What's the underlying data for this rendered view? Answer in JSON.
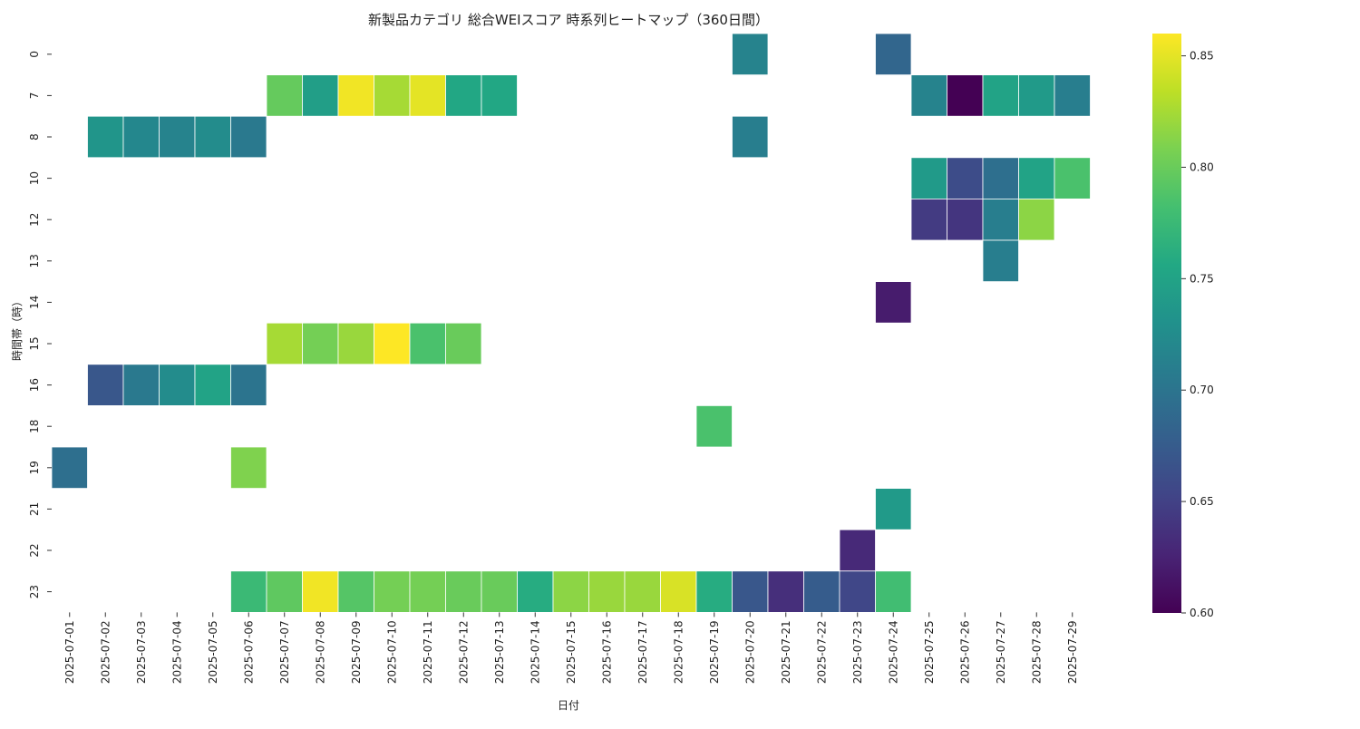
{
  "chart_data": {
    "type": "heatmap",
    "title": "新製品カテゴリ 総合WEIスコア 時系列ヒートマップ（360日間）",
    "xlabel": "日付",
    "ylabel": "時間帯（時）",
    "x_categories": [
      "2025-07-01",
      "2025-07-02",
      "2025-07-03",
      "2025-07-04",
      "2025-07-05",
      "2025-07-06",
      "2025-07-07",
      "2025-07-08",
      "2025-07-09",
      "2025-07-10",
      "2025-07-11",
      "2025-07-12",
      "2025-07-13",
      "2025-07-14",
      "2025-07-15",
      "2025-07-16",
      "2025-07-17",
      "2025-07-18",
      "2025-07-19",
      "2025-07-20",
      "2025-07-21",
      "2025-07-22",
      "2025-07-23",
      "2025-07-24",
      "2025-07-25",
      "2025-07-26",
      "2025-07-27",
      "2025-07-28",
      "2025-07-29"
    ],
    "y_categories": [
      "0",
      "7",
      "8",
      "10",
      "12",
      "13",
      "14",
      "15",
      "16",
      "18",
      "19",
      "21",
      "22",
      "23"
    ],
    "colormap": "viridis",
    "value_range": [
      0.6,
      0.86
    ],
    "colorbar_ticks": [
      "0.60",
      "0.65",
      "0.70",
      "0.75",
      "0.80",
      "0.85"
    ],
    "colorbar_tick_values": [
      0.6,
      0.65,
      0.7,
      0.75,
      0.8,
      0.85
    ],
    "values": [
      [
        null,
        null,
        null,
        null,
        null,
        null,
        null,
        null,
        null,
        null,
        null,
        null,
        null,
        null,
        null,
        null,
        null,
        null,
        null,
        0.715,
        null,
        null,
        null,
        0.685,
        null,
        null,
        null,
        null,
        null
      ],
      [
        null,
        null,
        null,
        null,
        null,
        null,
        0.798,
        0.745,
        0.855,
        0.825,
        0.85,
        0.755,
        0.755,
        null,
        null,
        null,
        null,
        null,
        null,
        null,
        null,
        null,
        null,
        null,
        0.715,
        0.6,
        0.75,
        0.74,
        0.71
      ],
      [
        null,
        0.735,
        0.72,
        0.715,
        0.725,
        0.705,
        null,
        null,
        null,
        null,
        null,
        null,
        null,
        null,
        null,
        null,
        null,
        null,
        null,
        0.71,
        null,
        null,
        null,
        null,
        null,
        null,
        null,
        null,
        null
      ],
      [
        null,
        null,
        null,
        null,
        null,
        null,
        null,
        null,
        null,
        null,
        null,
        null,
        null,
        null,
        null,
        null,
        null,
        null,
        null,
        null,
        null,
        null,
        null,
        null,
        0.74,
        0.66,
        0.695,
        0.75,
        0.785
      ],
      [
        null,
        null,
        null,
        null,
        null,
        null,
        null,
        null,
        null,
        null,
        null,
        null,
        null,
        null,
        null,
        null,
        null,
        null,
        null,
        null,
        null,
        null,
        null,
        null,
        0.645,
        0.64,
        0.71,
        0.815,
        null
      ],
      [
        null,
        null,
        null,
        null,
        null,
        null,
        null,
        null,
        null,
        null,
        null,
        null,
        null,
        null,
        null,
        null,
        null,
        null,
        null,
        null,
        null,
        null,
        null,
        null,
        null,
        null,
        0.71,
        null,
        null
      ],
      [
        null,
        null,
        null,
        null,
        null,
        null,
        null,
        null,
        null,
        null,
        null,
        null,
        null,
        null,
        null,
        null,
        null,
        null,
        null,
        null,
        null,
        null,
        null,
        0.62,
        null,
        null,
        null,
        null,
        null
      ],
      [
        null,
        null,
        null,
        null,
        null,
        null,
        0.825,
        0.805,
        0.82,
        0.86,
        0.785,
        0.8,
        null,
        null,
        null,
        null,
        null,
        null,
        null,
        null,
        null,
        null,
        null,
        null,
        null,
        null,
        null,
        null,
        null
      ],
      [
        null,
        0.67,
        0.705,
        0.725,
        0.75,
        0.7,
        null,
        null,
        null,
        null,
        null,
        null,
        null,
        null,
        null,
        null,
        null,
        null,
        null,
        null,
        null,
        null,
        null,
        null,
        null,
        null,
        null,
        null,
        null
      ],
      [
        null,
        null,
        null,
        null,
        null,
        null,
        null,
        null,
        null,
        null,
        null,
        null,
        null,
        null,
        null,
        null,
        null,
        null,
        0.785,
        null,
        null,
        null,
        null,
        null,
        null,
        null,
        null,
        null,
        null
      ],
      [
        0.695,
        null,
        null,
        null,
        null,
        0.81,
        null,
        null,
        null,
        null,
        null,
        null,
        null,
        null,
        null,
        null,
        null,
        null,
        null,
        null,
        null,
        null,
        null,
        null,
        null,
        null,
        null,
        null,
        null
      ],
      [
        null,
        null,
        null,
        null,
        null,
        null,
        null,
        null,
        null,
        null,
        null,
        null,
        null,
        null,
        null,
        null,
        null,
        null,
        null,
        null,
        null,
        null,
        null,
        0.74,
        null,
        null,
        null,
        null,
        null
      ],
      [
        null,
        null,
        null,
        null,
        null,
        null,
        null,
        null,
        null,
        null,
        null,
        null,
        null,
        null,
        null,
        null,
        null,
        null,
        null,
        null,
        null,
        null,
        0.63,
        null,
        null,
        null,
        null,
        null,
        null
      ],
      [
        null,
        null,
        null,
        null,
        null,
        0.775,
        0.795,
        0.855,
        0.79,
        0.805,
        0.805,
        0.8,
        0.8,
        0.76,
        0.815,
        0.82,
        0.82,
        0.845,
        0.76,
        0.67,
        0.635,
        0.675,
        0.655,
        0.78,
        null,
        null,
        null,
        null,
        null
      ]
    ]
  }
}
